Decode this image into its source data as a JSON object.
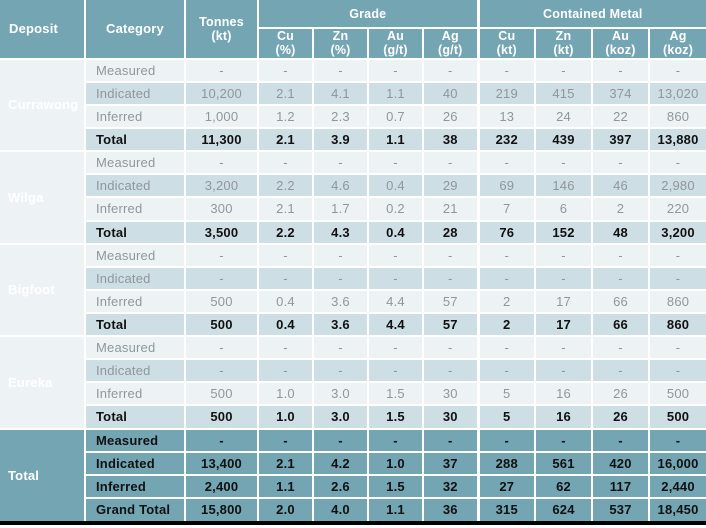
{
  "colors": {
    "teal": "#74a5b3",
    "row_light": "#edf3f5",
    "row_mid": "#cddee4",
    "text_muted": "#8f979c",
    "text_bold": "#111111",
    "grid_white": "#ffffff",
    "bottom_bar": "#000000"
  },
  "table": {
    "header": {
      "deposit": "Deposit",
      "category": "Category",
      "tonnes_line1": "Tonnes",
      "tonnes_line2": "(kt)",
      "grade_group": "Grade",
      "metal_group": "Contained Metal",
      "grade_cols": [
        {
          "el": "Cu",
          "unit": "(%)"
        },
        {
          "el": "Zn",
          "unit": "(%)"
        },
        {
          "el": "Au",
          "unit": "(g/t)"
        },
        {
          "el": "Ag",
          "unit": "(g/t)"
        }
      ],
      "metal_cols": [
        {
          "el": "Cu",
          "unit": "(kt)"
        },
        {
          "el": "Zn",
          "unit": "(kt)"
        },
        {
          "el": "Au",
          "unit": "(koz)"
        },
        {
          "el": "Ag",
          "unit": "(koz)"
        }
      ]
    },
    "groups": [
      {
        "deposit": "Currawong",
        "rows": [
          {
            "category": "Measured",
            "values": [
              "-",
              "-",
              "-",
              "-",
              "-",
              "-",
              "-",
              "-",
              "-"
            ]
          },
          {
            "category": "Indicated",
            "values": [
              "10,200",
              "2.1",
              "4.1",
              "1.1",
              "40",
              "219",
              "415",
              "374",
              "13,020"
            ]
          },
          {
            "category": "Inferred",
            "values": [
              "1,000",
              "1.2",
              "2.3",
              "0.7",
              "26",
              "13",
              "24",
              "22",
              "860"
            ]
          },
          {
            "category": "Total",
            "values": [
              "11,300",
              "2.1",
              "3.9",
              "1.1",
              "38",
              "232",
              "439",
              "397",
              "13,880"
            ]
          }
        ]
      },
      {
        "deposit": "Wilga",
        "rows": [
          {
            "category": "Measured",
            "values": [
              "-",
              "-",
              "-",
              "-",
              "-",
              "-",
              "-",
              "-",
              "-"
            ]
          },
          {
            "category": "Indicated",
            "values": [
              "3,200",
              "2.2",
              "4.6",
              "0.4",
              "29",
              "69",
              "146",
              "46",
              "2,980"
            ]
          },
          {
            "category": "Inferred",
            "values": [
              "300",
              "2.1",
              "1.7",
              "0.2",
              "21",
              "7",
              "6",
              "2",
              "220"
            ]
          },
          {
            "category": "Total",
            "values": [
              "3,500",
              "2.2",
              "4.3",
              "0.4",
              "28",
              "76",
              "152",
              "48",
              "3,200"
            ]
          }
        ]
      },
      {
        "deposit": "Bigfoot",
        "rows": [
          {
            "category": "Measured",
            "values": [
              "-",
              "-",
              "-",
              "-",
              "-",
              "-",
              "-",
              "-",
              "-"
            ]
          },
          {
            "category": "Indicated",
            "values": [
              "-",
              "-",
              "-",
              "-",
              "-",
              "-",
              "-",
              "-",
              "-"
            ]
          },
          {
            "category": "Inferred",
            "values": [
              "500",
              "0.4",
              "3.6",
              "4.4",
              "57",
              "2",
              "17",
              "66",
              "860"
            ]
          },
          {
            "category": "Total",
            "values": [
              "500",
              "0.4",
              "3.6",
              "4.4",
              "57",
              "2",
              "17",
              "66",
              "860"
            ]
          }
        ]
      },
      {
        "deposit": "Eureka",
        "rows": [
          {
            "category": "Measured",
            "values": [
              "-",
              "-",
              "-",
              "-",
              "-",
              "-",
              "-",
              "-",
              "-"
            ]
          },
          {
            "category": "Indicated",
            "values": [
              "-",
              "-",
              "-",
              "-",
              "-",
              "-",
              "-",
              "-",
              "-"
            ]
          },
          {
            "category": "Inferred",
            "values": [
              "500",
              "1.0",
              "3.0",
              "1.5",
              "30",
              "5",
              "16",
              "26",
              "500"
            ]
          },
          {
            "category": "Total",
            "values": [
              "500",
              "1.0",
              "3.0",
              "1.5",
              "30",
              "5",
              "16",
              "26",
              "500"
            ]
          }
        ]
      },
      {
        "deposit": "Total",
        "rows": [
          {
            "category": "Measured",
            "values": [
              "-",
              "-",
              "-",
              "-",
              "-",
              "-",
              "-",
              "-",
              "-"
            ]
          },
          {
            "category": "Indicated",
            "values": [
              "13,400",
              "2.1",
              "4.2",
              "1.0",
              "37",
              "288",
              "561",
              "420",
              "16,000"
            ]
          },
          {
            "category": "Inferred",
            "values": [
              "2,400",
              "1.1",
              "2.6",
              "1.5",
              "32",
              "27",
              "62",
              "117",
              "2,440"
            ]
          },
          {
            "category": "Grand Total",
            "values": [
              "15,800",
              "2.0",
              "4.0",
              "1.1",
              "36",
              "315",
              "624",
              "537",
              "18,450"
            ]
          }
        ]
      }
    ]
  }
}
